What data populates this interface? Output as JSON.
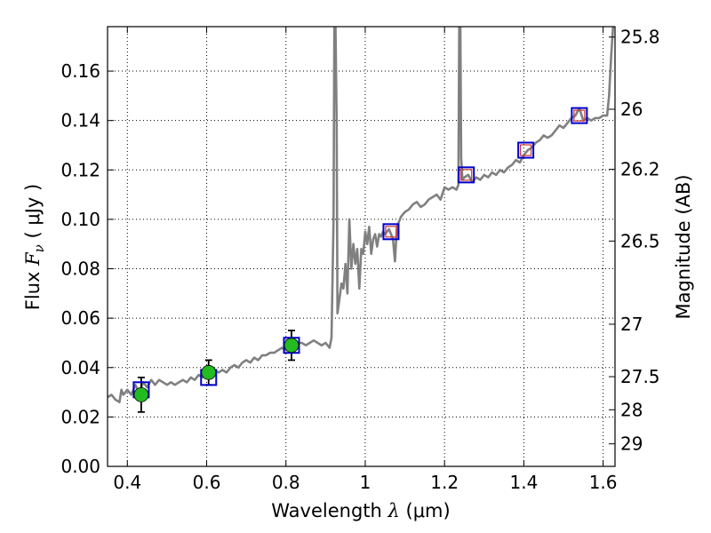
{
  "chart_data": {
    "type": "scatter",
    "xlabel_text": "Wavelength  ",
    "xlabel_symbol": "λ",
    "xlabel_unit": " (μm)",
    "ylabel_text": "Flux  ",
    "ylabel_symbol_main": "F",
    "ylabel_symbol_sub": "ν",
    "ylabel_unit": "  ( μJy )",
    "y2label": "Magnitude (AB)",
    "xlim": [
      0.35,
      1.63
    ],
    "ylim": [
      0,
      0.178
    ],
    "grid": true,
    "x_ticks": [
      {
        "value": 0.4,
        "label": "0.4"
      },
      {
        "value": 0.6,
        "label": "0.6"
      },
      {
        "value": 0.8,
        "label": "0.8"
      },
      {
        "value": 1.0,
        "label": "1"
      },
      {
        "value": 1.2,
        "label": "1.2"
      },
      {
        "value": 1.4,
        "label": "1.4"
      },
      {
        "value": 1.6,
        "label": "1.6"
      }
    ],
    "y_ticks": [
      {
        "value": 0.0,
        "label": "0.00"
      },
      {
        "value": 0.02,
        "label": "0.02"
      },
      {
        "value": 0.04,
        "label": "0.04"
      },
      {
        "value": 0.06,
        "label": "0.06"
      },
      {
        "value": 0.08,
        "label": "0.08"
      },
      {
        "value": 0.1,
        "label": "0.10"
      },
      {
        "value": 0.12,
        "label": "0.12"
      },
      {
        "value": 0.14,
        "label": "0.14"
      },
      {
        "value": 0.16,
        "label": "0.16"
      }
    ],
    "y2_ticks": [
      {
        "value": 25.8,
        "label": "25.8"
      },
      {
        "value": 26.0,
        "label": "26"
      },
      {
        "value": 26.2,
        "label": "26.2"
      },
      {
        "value": 26.5,
        "label": "26.5"
      },
      {
        "value": 27.0,
        "label": "27"
      },
      {
        "value": 27.5,
        "label": "27.5"
      },
      {
        "value": 28.0,
        "label": "28"
      },
      {
        "value": 29.0,
        "label": "29"
      }
    ],
    "model_spectrum": {
      "color": "#808080",
      "points": [
        [
          0.35,
          0.028
        ],
        [
          0.36,
          0.029
        ],
        [
          0.37,
          0.027
        ],
        [
          0.38,
          0.026
        ],
        [
          0.385,
          0.031
        ],
        [
          0.39,
          0.029
        ],
        [
          0.4,
          0.031
        ],
        [
          0.41,
          0.029
        ],
        [
          0.42,
          0.033
        ],
        [
          0.43,
          0.03
        ],
        [
          0.44,
          0.034
        ],
        [
          0.45,
          0.032
        ],
        [
          0.46,
          0.035
        ],
        [
          0.47,
          0.033
        ],
        [
          0.48,
          0.035
        ],
        [
          0.49,
          0.034
        ],
        [
          0.5,
          0.033
        ],
        [
          0.51,
          0.034
        ],
        [
          0.52,
          0.033
        ],
        [
          0.53,
          0.034
        ],
        [
          0.54,
          0.035
        ],
        [
          0.55,
          0.034
        ],
        [
          0.56,
          0.036
        ],
        [
          0.57,
          0.035
        ],
        [
          0.58,
          0.037
        ],
        [
          0.59,
          0.036
        ],
        [
          0.6,
          0.038
        ],
        [
          0.61,
          0.037
        ],
        [
          0.62,
          0.039
        ],
        [
          0.63,
          0.038
        ],
        [
          0.64,
          0.039
        ],
        [
          0.65,
          0.038
        ],
        [
          0.66,
          0.04
        ],
        [
          0.67,
          0.041
        ],
        [
          0.68,
          0.04
        ],
        [
          0.69,
          0.042
        ],
        [
          0.7,
          0.043
        ],
        [
          0.71,
          0.042
        ],
        [
          0.72,
          0.044
        ],
        [
          0.73,
          0.043
        ],
        [
          0.74,
          0.045
        ],
        [
          0.75,
          0.045
        ],
        [
          0.76,
          0.046
        ],
        [
          0.77,
          0.046
        ],
        [
          0.78,
          0.047
        ],
        [
          0.79,
          0.048
        ],
        [
          0.8,
          0.047
        ],
        [
          0.81,
          0.048
        ],
        [
          0.82,
          0.049
        ],
        [
          0.83,
          0.05
        ],
        [
          0.84,
          0.05
        ],
        [
          0.85,
          0.049
        ],
        [
          0.86,
          0.05
        ],
        [
          0.87,
          0.051
        ],
        [
          0.88,
          0.05
        ],
        [
          0.89,
          0.049
        ],
        [
          0.9,
          0.05
        ],
        [
          0.91,
          0.048
        ],
        [
          0.915,
          0.052
        ],
        [
          0.92,
          0.1
        ],
        [
          0.922,
          0.178
        ],
        [
          0.925,
          0.178
        ],
        [
          0.928,
          0.14
        ],
        [
          0.93,
          0.062
        ],
        [
          0.935,
          0.068
        ],
        [
          0.94,
          0.074
        ],
        [
          0.945,
          0.072
        ],
        [
          0.95,
          0.082
        ],
        [
          0.955,
          0.07
        ],
        [
          0.96,
          0.1
        ],
        [
          0.965,
          0.08
        ],
        [
          0.97,
          0.09
        ],
        [
          0.975,
          0.082
        ],
        [
          0.98,
          0.088
        ],
        [
          0.985,
          0.072
        ],
        [
          0.99,
          0.088
        ],
        [
          0.995,
          0.086
        ],
        [
          1.0,
          0.095
        ],
        [
          1.005,
          0.09
        ],
        [
          1.01,
          0.097
        ],
        [
          1.015,
          0.086
        ],
        [
          1.02,
          0.092
        ],
        [
          1.025,
          0.094
        ],
        [
          1.03,
          0.089
        ],
        [
          1.035,
          0.094
        ],
        [
          1.04,
          0.093
        ],
        [
          1.045,
          0.095
        ],
        [
          1.05,
          0.094
        ],
        [
          1.06,
          0.096
        ],
        [
          1.07,
          0.092
        ],
        [
          1.075,
          0.083
        ],
        [
          1.08,
          0.097
        ],
        [
          1.09,
          0.101
        ],
        [
          1.1,
          0.103
        ],
        [
          1.11,
          0.104
        ],
        [
          1.12,
          0.106
        ],
        [
          1.13,
          0.107
        ],
        [
          1.14,
          0.105
        ],
        [
          1.15,
          0.106
        ],
        [
          1.16,
          0.108
        ],
        [
          1.17,
          0.109
        ],
        [
          1.18,
          0.11
        ],
        [
          1.19,
          0.108
        ],
        [
          1.2,
          0.113
        ],
        [
          1.21,
          0.112
        ],
        [
          1.22,
          0.113
        ],
        [
          1.23,
          0.112
        ],
        [
          1.235,
          0.114
        ],
        [
          1.237,
          0.178
        ],
        [
          1.24,
          0.178
        ],
        [
          1.242,
          0.125
        ],
        [
          1.245,
          0.116
        ],
        [
          1.25,
          0.117
        ],
        [
          1.26,
          0.118
        ],
        [
          1.27,
          0.115
        ],
        [
          1.28,
          0.117
        ],
        [
          1.29,
          0.116
        ],
        [
          1.3,
          0.118
        ],
        [
          1.31,
          0.117
        ],
        [
          1.32,
          0.119
        ],
        [
          1.33,
          0.118
        ],
        [
          1.34,
          0.12
        ],
        [
          1.35,
          0.119
        ],
        [
          1.36,
          0.121
        ],
        [
          1.37,
          0.122
        ],
        [
          1.38,
          0.124
        ],
        [
          1.39,
          0.123
        ],
        [
          1.4,
          0.126
        ],
        [
          1.41,
          0.128
        ],
        [
          1.42,
          0.129
        ],
        [
          1.43,
          0.131
        ],
        [
          1.44,
          0.132
        ],
        [
          1.45,
          0.134
        ],
        [
          1.46,
          0.133
        ],
        [
          1.47,
          0.134
        ],
        [
          1.48,
          0.136
        ],
        [
          1.49,
          0.138
        ],
        [
          1.5,
          0.137
        ],
        [
          1.51,
          0.139
        ],
        [
          1.52,
          0.141
        ],
        [
          1.53,
          0.142
        ],
        [
          1.54,
          0.145
        ],
        [
          1.55,
          0.14
        ],
        [
          1.56,
          0.141
        ],
        [
          1.57,
          0.14
        ],
        [
          1.58,
          0.141
        ],
        [
          1.59,
          0.141
        ],
        [
          1.6,
          0.142
        ],
        [
          1.61,
          0.142
        ],
        [
          1.615,
          0.15
        ],
        [
          1.62,
          0.165
        ],
        [
          1.625,
          0.178
        ]
      ]
    },
    "model_photometry": {
      "color": "#0000cc",
      "marker": "open-square",
      "points": [
        {
          "x": 0.435,
          "y": 0.031
        },
        {
          "x": 0.605,
          "y": 0.036
        },
        {
          "x": 0.814,
          "y": 0.049
        },
        {
          "x": 1.065,
          "y": 0.095
        },
        {
          "x": 1.255,
          "y": 0.118
        },
        {
          "x": 1.405,
          "y": 0.128
        },
        {
          "x": 1.54,
          "y": 0.142
        }
      ]
    },
    "observed_optical": {
      "color": "#22bb22",
      "marker": "filled-circle",
      "points": [
        {
          "x": 0.435,
          "y": 0.029,
          "err": 0.007
        },
        {
          "x": 0.605,
          "y": 0.038,
          "err": 0.005
        },
        {
          "x": 0.814,
          "y": 0.049,
          "err": 0.006
        }
      ]
    },
    "observed_nir": {
      "color": "#cc3333",
      "marker": "small-open-square",
      "points": [
        {
          "x": 1.065,
          "y": 0.095
        },
        {
          "x": 1.255,
          "y": 0.118
        },
        {
          "x": 1.405,
          "y": 0.128
        },
        {
          "x": 1.54,
          "y": 0.142
        }
      ]
    }
  }
}
